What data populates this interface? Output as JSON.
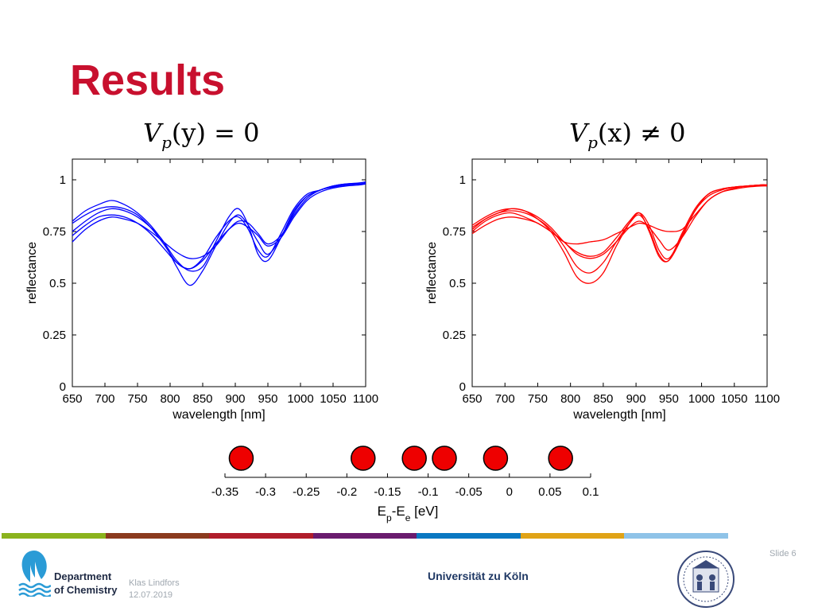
{
  "slide": {
    "title": "Results",
    "eq_left": {
      "base": "V",
      "sub": "p",
      "rest": "(y) = 0"
    },
    "eq_right": {
      "base": "V",
      "sub": "p",
      "rest": "(x) ≠ 0"
    }
  },
  "chart_data": [
    {
      "type": "line",
      "xlabel": "wavelength [nm]",
      "ylabel": "reflectance",
      "xlim": [
        650,
        1100
      ],
      "ylim": [
        0,
        1.1
      ],
      "xticks": [
        650,
        700,
        750,
        800,
        850,
        900,
        950,
        1000,
        1050,
        1100
      ],
      "yticks": [
        0,
        0.25,
        0.5,
        0.75,
        1
      ],
      "color": "#0000ff",
      "x": [
        650,
        670,
        690,
        710,
        730,
        750,
        770,
        790,
        810,
        830,
        850,
        870,
        890,
        905,
        920,
        935,
        950,
        970,
        990,
        1010,
        1030,
        1050,
        1070,
        1090,
        1100
      ],
      "series": [
        {
          "values": [
            0.8,
            0.85,
            0.88,
            0.9,
            0.88,
            0.84,
            0.78,
            0.7,
            0.61,
            0.56,
            0.58,
            0.7,
            0.82,
            0.86,
            0.78,
            0.64,
            0.61,
            0.72,
            0.85,
            0.92,
            0.95,
            0.97,
            0.98,
            0.985,
            0.99
          ]
        },
        {
          "values": [
            0.79,
            0.83,
            0.86,
            0.87,
            0.86,
            0.83,
            0.77,
            0.69,
            0.6,
            0.57,
            0.62,
            0.72,
            0.8,
            0.82,
            0.76,
            0.66,
            0.63,
            0.74,
            0.86,
            0.93,
            0.95,
            0.97,
            0.98,
            0.98,
            0.985
          ]
        },
        {
          "values": [
            0.75,
            0.8,
            0.84,
            0.86,
            0.85,
            0.82,
            0.77,
            0.7,
            0.58,
            0.49,
            0.56,
            0.68,
            0.79,
            0.83,
            0.78,
            0.7,
            0.64,
            0.72,
            0.84,
            0.92,
            0.95,
            0.97,
            0.975,
            0.98,
            0.98
          ]
        },
        {
          "values": [
            0.73,
            0.78,
            0.82,
            0.83,
            0.82,
            0.79,
            0.74,
            0.67,
            0.6,
            0.57,
            0.61,
            0.69,
            0.76,
            0.79,
            0.77,
            0.73,
            0.68,
            0.72,
            0.82,
            0.9,
            0.94,
            0.96,
            0.97,
            0.975,
            0.98
          ]
        },
        {
          "values": [
            0.7,
            0.76,
            0.8,
            0.82,
            0.81,
            0.79,
            0.75,
            0.7,
            0.65,
            0.62,
            0.63,
            0.68,
            0.76,
            0.8,
            0.79,
            0.74,
            0.69,
            0.73,
            0.83,
            0.91,
            0.95,
            0.965,
            0.975,
            0.98,
            0.98
          ]
        }
      ]
    },
    {
      "type": "line",
      "xlabel": "wavelength [nm]",
      "ylabel": "reflectance",
      "xlim": [
        650,
        1100
      ],
      "ylim": [
        0,
        1.1
      ],
      "xticks": [
        650,
        700,
        750,
        800,
        850,
        900,
        950,
        1000,
        1050,
        1100
      ],
      "yticks": [
        0,
        0.25,
        0.5,
        0.75,
        1
      ],
      "color": "#ff0000",
      "x": [
        650,
        670,
        690,
        710,
        730,
        750,
        770,
        790,
        810,
        830,
        850,
        870,
        890,
        905,
        920,
        935,
        950,
        970,
        990,
        1010,
        1030,
        1050,
        1070,
        1090,
        1100
      ],
      "series": [
        {
          "values": [
            0.78,
            0.82,
            0.85,
            0.86,
            0.85,
            0.82,
            0.77,
            0.7,
            0.65,
            0.63,
            0.65,
            0.72,
            0.8,
            0.84,
            0.75,
            0.63,
            0.61,
            0.72,
            0.85,
            0.92,
            0.95,
            0.965,
            0.97,
            0.975,
            0.975
          ]
        },
        {
          "values": [
            0.77,
            0.81,
            0.84,
            0.85,
            0.84,
            0.81,
            0.76,
            0.68,
            0.58,
            0.55,
            0.6,
            0.7,
            0.79,
            0.83,
            0.76,
            0.64,
            0.61,
            0.74,
            0.86,
            0.93,
            0.955,
            0.965,
            0.97,
            0.975,
            0.975
          ]
        },
        {
          "values": [
            0.76,
            0.81,
            0.84,
            0.86,
            0.85,
            0.81,
            0.75,
            0.65,
            0.53,
            0.5,
            0.55,
            0.68,
            0.79,
            0.84,
            0.78,
            0.66,
            0.62,
            0.73,
            0.85,
            0.93,
            0.955,
            0.965,
            0.97,
            0.975,
            0.975
          ]
        },
        {
          "values": [
            0.75,
            0.8,
            0.83,
            0.84,
            0.82,
            0.79,
            0.75,
            0.7,
            0.64,
            0.62,
            0.64,
            0.7,
            0.77,
            0.8,
            0.77,
            0.71,
            0.66,
            0.72,
            0.82,
            0.9,
            0.94,
            0.96,
            0.97,
            0.975,
            0.975
          ]
        },
        {
          "values": [
            0.74,
            0.78,
            0.81,
            0.82,
            0.81,
            0.79,
            0.75,
            0.7,
            0.69,
            0.7,
            0.71,
            0.74,
            0.77,
            0.79,
            0.78,
            0.76,
            0.75,
            0.76,
            0.83,
            0.9,
            0.94,
            0.955,
            0.965,
            0.97,
            0.97
          ]
        }
      ]
    },
    {
      "type": "scatter",
      "xlabel": "Ep-Ee [eV]",
      "xlabel_parts": {
        "e1": "E",
        "s1": "p",
        "mid": "-E",
        "s2": "e",
        "tail": " [eV]"
      },
      "xlim": [
        -0.35,
        0.1
      ],
      "xticks": [
        -0.35,
        -0.3,
        -0.25,
        -0.2,
        -0.15,
        -0.1,
        -0.05,
        0,
        0.05,
        0.1
      ],
      "xticklabels": [
        "-0.35",
        "-0.3",
        "-0.25",
        "-0.2",
        "-0.15",
        "-0.1",
        "-0.05",
        "0",
        "0.05",
        "0.1"
      ],
      "x": [
        -0.33,
        -0.18,
        -0.117,
        -0.08,
        -0.017,
        0.063
      ],
      "color": "#ee0000"
    }
  ],
  "footer": {
    "department": "Department",
    "department2": "of Chemistry",
    "author": "Klas Lindfors",
    "date": "12.07.2019",
    "university": "Universität zu Köln",
    "slide_number": "Slide 6",
    "stripe_colors": [
      "#8bb31d",
      "#8b3a1e",
      "#b01d2b",
      "#6a1b6e",
      "#0a78c2",
      "#e0a316",
      "#8fc3e8"
    ]
  }
}
